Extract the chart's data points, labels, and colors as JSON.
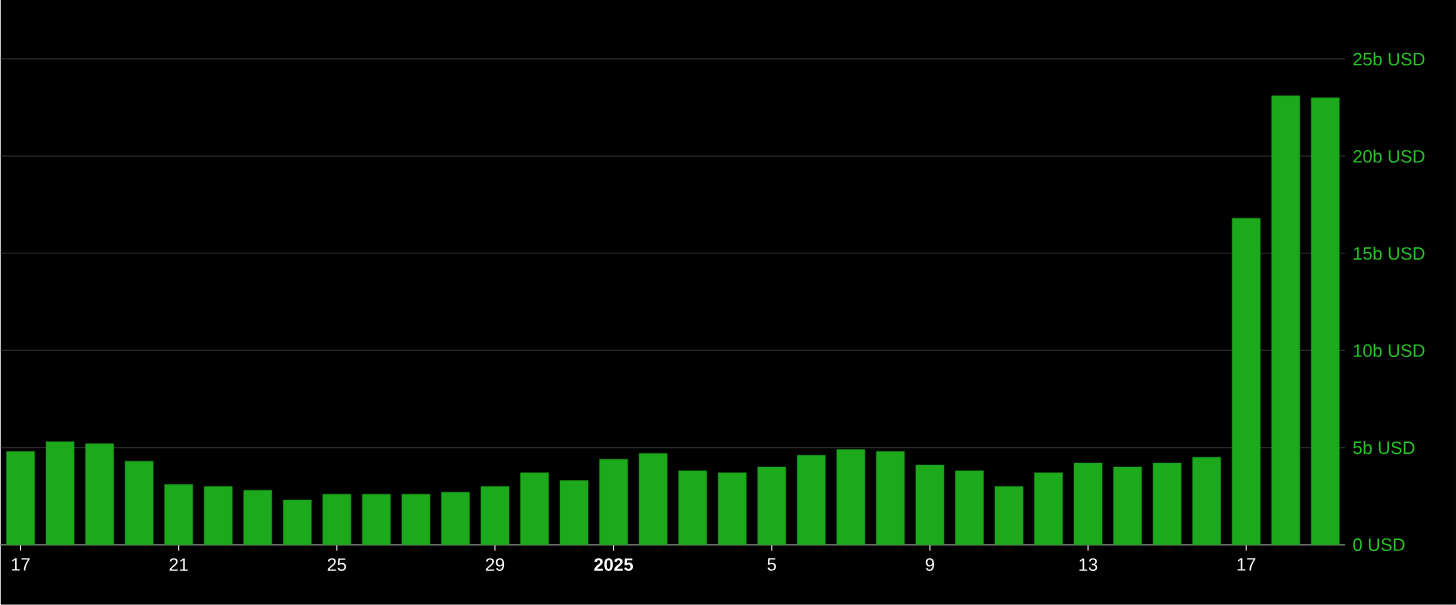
{
  "chart_data": {
    "type": "bar",
    "color": "#1ca91c",
    "x": [
      "2024-12-17",
      "2024-12-18",
      "2024-12-19",
      "2024-12-20",
      "2024-12-21",
      "2024-12-22",
      "2024-12-23",
      "2024-12-24",
      "2024-12-25",
      "2024-12-26",
      "2024-12-27",
      "2024-12-28",
      "2024-12-29",
      "2024-12-30",
      "2024-12-31",
      "2025-01-01",
      "2025-01-02",
      "2025-01-03",
      "2025-01-04",
      "2025-01-05",
      "2025-01-06",
      "2025-01-07",
      "2025-01-08",
      "2025-01-09",
      "2025-01-10",
      "2025-01-11",
      "2025-01-12",
      "2025-01-13",
      "2025-01-14",
      "2025-01-15",
      "2025-01-16",
      "2025-01-17",
      "2025-01-18",
      "2025-01-19"
    ],
    "values": [
      4.8,
      5.3,
      5.2,
      4.3,
      3.1,
      3.0,
      2.8,
      2.3,
      2.6,
      2.6,
      2.6,
      2.7,
      3.0,
      3.7,
      3.3,
      4.4,
      4.7,
      3.8,
      3.7,
      4.0,
      4.6,
      4.9,
      4.8,
      4.1,
      3.8,
      3.0,
      3.7,
      4.2,
      4.0,
      4.2,
      4.5,
      16.8,
      23.1,
      23.0
    ],
    "xlim": [
      "2024-12-16T12:00",
      "2025-01-19T12:00"
    ],
    "xticks": [
      {
        "value": "2024-12-17",
        "label": "17"
      },
      {
        "value": "2024-12-21",
        "label": "21"
      },
      {
        "value": "2024-12-25",
        "label": "25"
      },
      {
        "value": "2024-12-29",
        "label": "29"
      },
      {
        "value": "2025-01-01",
        "label": "**2025**"
      },
      {
        "value": "2025-01-05",
        "label": "5"
      },
      {
        "value": "2025-01-09",
        "label": "9"
      },
      {
        "value": "2025-01-13",
        "label": "13"
      },
      {
        "value": "2025-01-17",
        "label": "17"
      }
    ],
    "ylim": [
      0,
      25
    ],
    "yticks": [
      {
        "value": 0,
        "label": "0 USD"
      },
      {
        "value": 5,
        "label": "5b USD"
      },
      {
        "value": 10,
        "label": "10b USD"
      },
      {
        "value": 15,
        "label": "15b USD"
      },
      {
        "value": 20,
        "label": "20b USD"
      },
      {
        "value": 25,
        "label": "25b USD"
      }
    ],
    "grid": "y"
  }
}
